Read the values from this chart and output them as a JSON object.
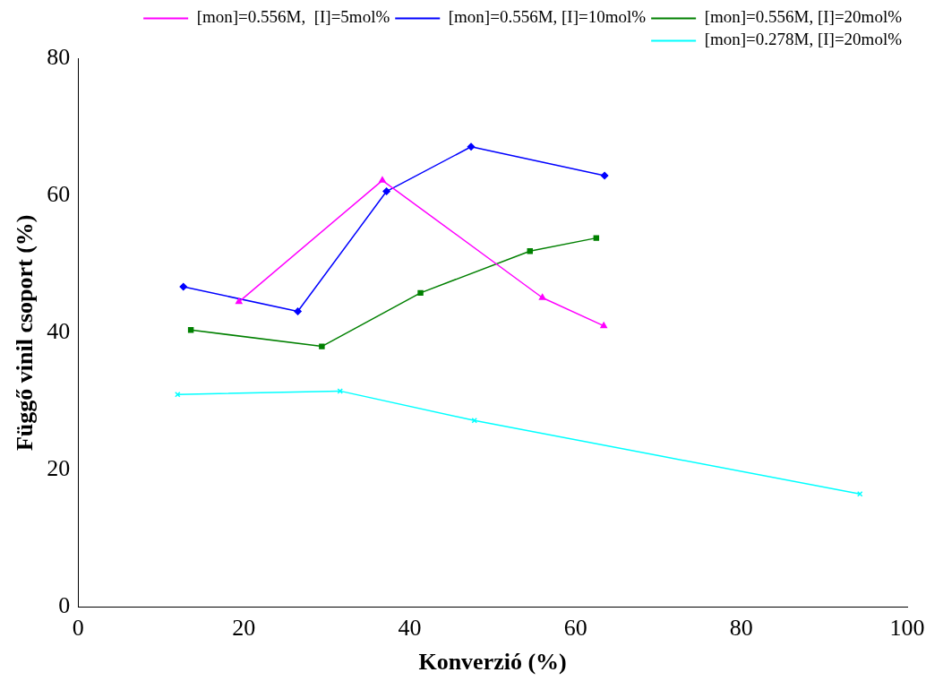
{
  "chart_data": {
    "type": "line",
    "xlabel": "Konverzió (%)",
    "ylabel": "Függő vinil csoport (%)",
    "xlim": [
      0,
      100
    ],
    "xticks": [
      0,
      20,
      40,
      60,
      80,
      100
    ],
    "ylim": [
      0,
      80
    ],
    "yticks": [
      0,
      20,
      40,
      60,
      80
    ],
    "grid": false,
    "legend": "top right",
    "line_style": "solid",
    "series": [
      {
        "name": "[mon]=0.556M,  [I]=5mol%",
        "color": "#ff00ff",
        "marker": "triangle",
        "x": [
          19.4,
          36.7,
          56.0,
          63.4
        ],
        "values": [
          44.5,
          62.2,
          45.1,
          41.0
        ]
      },
      {
        "name": "[mon]=0.556M, [I]=10mol%",
        "color": "#0000ff",
        "marker": "diamond",
        "x": [
          12.7,
          26.5,
          37.2,
          47.4,
          63.5
        ],
        "values": [
          46.7,
          43.1,
          60.6,
          67.1,
          62.9
        ]
      },
      {
        "name": "[mon]=0.556M, [I]=20mol%",
        "color": "#008000",
        "marker": "square",
        "x": [
          13.6,
          29.4,
          41.3,
          54.5,
          62.5
        ],
        "values": [
          40.4,
          38.0,
          45.8,
          51.9,
          53.8
        ]
      },
      {
        "name": "[mon]=0.278M, [I]=20mol%",
        "color": "#00ffff",
        "marker": "cross",
        "x": [
          12.0,
          31.6,
          47.8,
          94.3
        ],
        "values": [
          31.0,
          31.5,
          27.2,
          16.5
        ]
      }
    ]
  }
}
